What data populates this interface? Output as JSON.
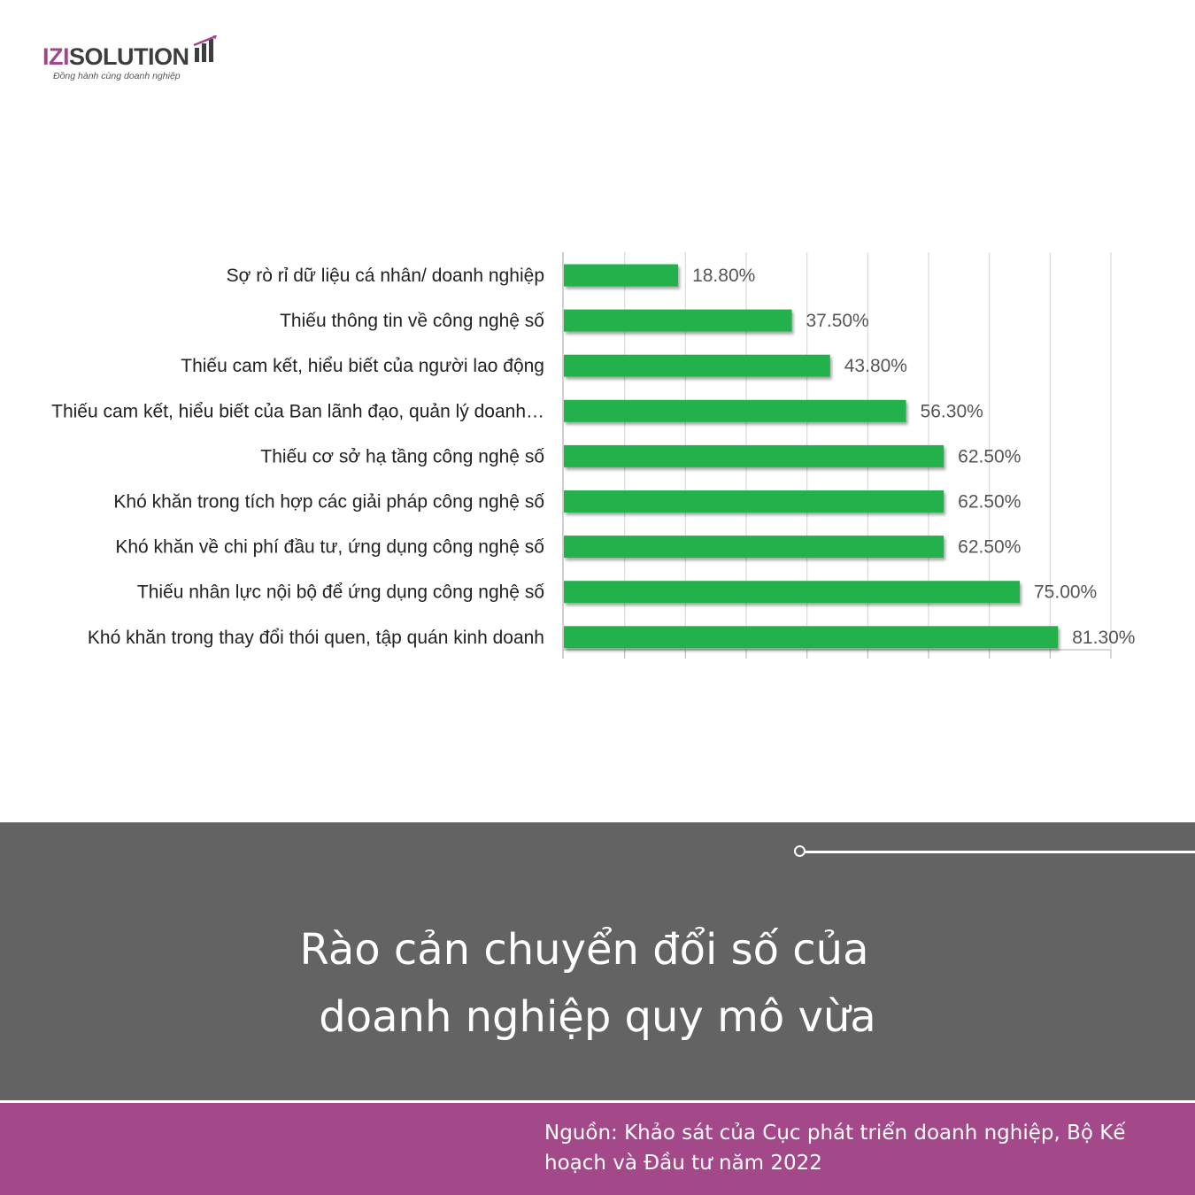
{
  "logo": {
    "brand_accent": "IZI",
    "brand_rest": "SOLUTION",
    "tagline": "Đồng hành cùng doanh nghiệp",
    "icon": "bar-chart-arrow-icon",
    "accent_color": "#a0478a"
  },
  "chart_data": {
    "type": "bar",
    "orientation": "horizontal",
    "categories": [
      "Sợ rò rỉ dữ liệu cá nhân/ doanh nghiệp",
      "Thiếu thông tin về công nghệ số",
      "Thiếu cam kết, hiểu biết của người lao động",
      "Thiếu cam kết, hiểu biết của Ban lãnh đạo, quản lý doanh…",
      "Thiếu cơ sở hạ tầng công nghệ số",
      "Khó khăn trong tích hợp các giải pháp công nghệ số",
      "Khó khăn về chi phí đầu tư, ứng dụng công nghệ số",
      "Thiếu nhân lực nội bộ để ứng dụng công nghệ số",
      "Khó khăn trong thay đổi thói quen, tập quán kinh doanh"
    ],
    "values": [
      18.8,
      37.5,
      43.8,
      56.3,
      62.5,
      62.5,
      62.5,
      75.0,
      81.3
    ],
    "value_labels": [
      "18.80%",
      "37.50%",
      "43.80%",
      "56.30%",
      "62.50%",
      "62.50%",
      "62.50%",
      "75.00%",
      "81.30%"
    ],
    "xlim": [
      0,
      90
    ],
    "grid": true,
    "bar_color": "#22b14c"
  },
  "panel": {
    "title_line1": "Rào cản chuyển đổi số của",
    "title_line2": "doanh nghiệp quy mô vừa"
  },
  "footer": {
    "source": "Nguồn: Khảo sát của Cục phát triển doanh nghiệp, Bộ Kế hoạch và Đầu tư năm 2022"
  }
}
